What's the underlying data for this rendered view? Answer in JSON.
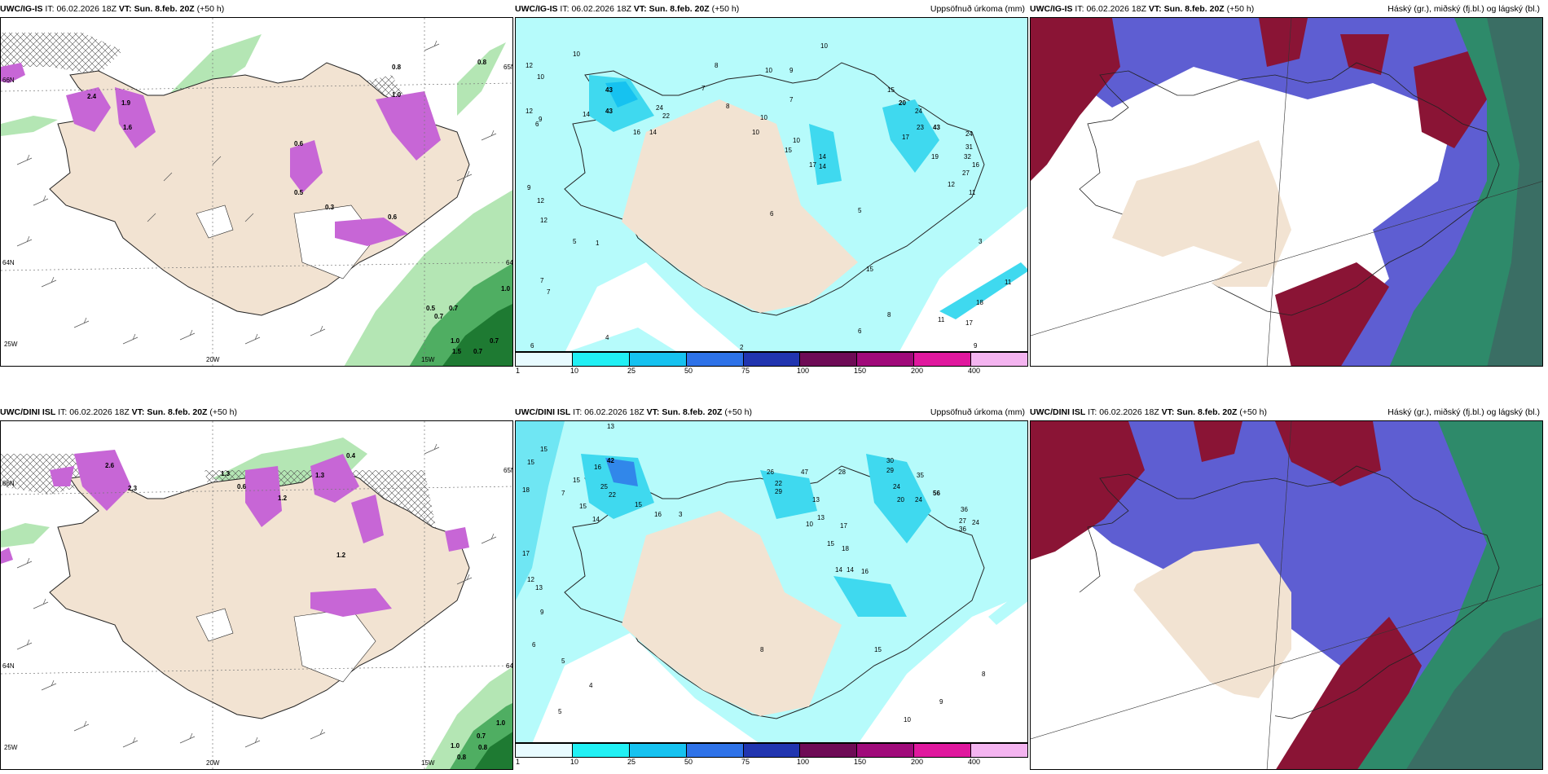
{
  "panels": {
    "top_left": {
      "model": "UWC/IG-IS",
      "it_label": "IT:",
      "it_value": "06.02.2026 18Z",
      "vt_label": "VT:",
      "vt_value": "Sun. 8.feb. 20Z",
      "lead": "(+50 h)",
      "title_right": ""
    },
    "top_mid": {
      "model": "UWC/IG-IS",
      "it_label": "IT:",
      "it_value": "06.02.2026 18Z",
      "vt_label": "VT:",
      "vt_value": "Sun. 8.feb. 20Z",
      "lead": "(+50 h)",
      "title_right": "Uppsöfnuð úrkoma (mm)"
    },
    "top_right": {
      "model": "UWC/IG-IS",
      "it_label": "IT:",
      "it_value": "06.02.2026 18Z",
      "vt_label": "VT:",
      "vt_value": "Sun. 8.feb. 20Z",
      "lead": "(+50 h)",
      "title_right": "Háský (gr.), miðský (fj.bl.) og lágský (bl.)"
    },
    "bottom_left": {
      "model": "UWC/DINI ISL",
      "it_label": "IT:",
      "it_value": "06.02.2026 18Z",
      "vt_label": "VT:",
      "vt_value": "Sun. 8.feb. 20Z",
      "lead": "(+50 h)",
      "title_right": ""
    },
    "bottom_mid": {
      "model": "UWC/DINI ISL",
      "it_label": "IT:",
      "it_value": "06.02.2026 18Z",
      "vt_label": "VT:",
      "vt_value": "Sun. 8.feb. 20Z",
      "lead": "(+50 h)",
      "title_right": "Uppsöfnuð úrkoma (mm)"
    },
    "bottom_right": {
      "model": "UWC/DINI ISL",
      "it_label": "IT:",
      "it_value": "06.02.2026 18Z",
      "vt_label": "VT:",
      "vt_value": "Sun. 8.feb. 20Z",
      "lead": "(+50 h)",
      "title_right": "Háský (gr.), miðský (fj.bl.) og lágský (bl.)"
    }
  },
  "grid_labels": {
    "lon_20w": "20W",
    "lon_15w": "15W",
    "lat_66n": "66N",
    "lat_64n": "64N",
    "lon_25w": "25W",
    "lat_65n": "65N"
  },
  "colorbar": {
    "labels": [
      "1",
      "10",
      "25",
      "50",
      "75",
      "100",
      "150",
      "200",
      "400"
    ],
    "colors": [
      "#e8fbff",
      "#21f0f4",
      "#16c2f0",
      "#2e72e8",
      "#2135b0",
      "#6e0b56",
      "#a00a7a",
      "#e0189e",
      "#f4b4f0"
    ]
  },
  "colors": {
    "land": "#f2e3d2",
    "sea_precip_light": "#b6fbfb",
    "precip_mid": "#3fd9ef",
    "green_light": "#b4e6b4",
    "green_dark": "#1e7a32",
    "purple_snow": "#c766d6",
    "cloud_high": "#8a1435",
    "cloud_mid": "#5e5ed2",
    "cloud_low_green": "#2e8a6a"
  },
  "precip_values_top": [
    "12",
    "10",
    "12",
    "10",
    "9",
    "6",
    "9",
    "12",
    "12",
    "5",
    "1",
    "7",
    "7",
    "6",
    "4",
    "2",
    "43",
    "43",
    "14",
    "24",
    "22",
    "16",
    "14",
    "7",
    "8",
    "10",
    "7",
    "10",
    "15",
    "17",
    "14",
    "14",
    "10",
    "10",
    "6",
    "9",
    "10",
    "8",
    "15",
    "20",
    "24",
    "23",
    "43",
    "17",
    "19",
    "24",
    "31",
    "32",
    "16",
    "27",
    "12",
    "11",
    "3",
    "18",
    "17",
    "11",
    "9",
    "8",
    "6",
    "15",
    "11",
    "5"
  ],
  "precip_values_bottom": [
    "13",
    "15",
    "15",
    "18",
    "17",
    "12",
    "13",
    "7",
    "15",
    "16",
    "42",
    "25",
    "22",
    "15",
    "16",
    "15",
    "14",
    "26",
    "47",
    "28",
    "22",
    "29",
    "30",
    "29",
    "24",
    "35",
    "20",
    "24",
    "56",
    "36",
    "27",
    "36",
    "24",
    "17",
    "15",
    "18",
    "14",
    "14",
    "16",
    "3",
    "13",
    "10",
    "13",
    "15",
    "8",
    "6",
    "9",
    "5",
    "4",
    "9",
    "10",
    "8",
    "5"
  ],
  "wind_values_top": [
    "0.8",
    "0.5",
    "0.7",
    "0.7",
    "1.0",
    "1.5",
    "0.7",
    "1.0",
    "0.7",
    "0.8",
    "2.4",
    "1.9",
    "1.6",
    "0.6",
    "1.0",
    "0.3",
    "0.6",
    "0.5"
  ],
  "wind_values_bottom": [
    "2.6",
    "2.3",
    "1.3",
    "0.4",
    "1.3",
    "1.0",
    "0.8",
    "0.7",
    "1.0",
    "0.8",
    "1.2",
    "0.6",
    "1.2"
  ]
}
